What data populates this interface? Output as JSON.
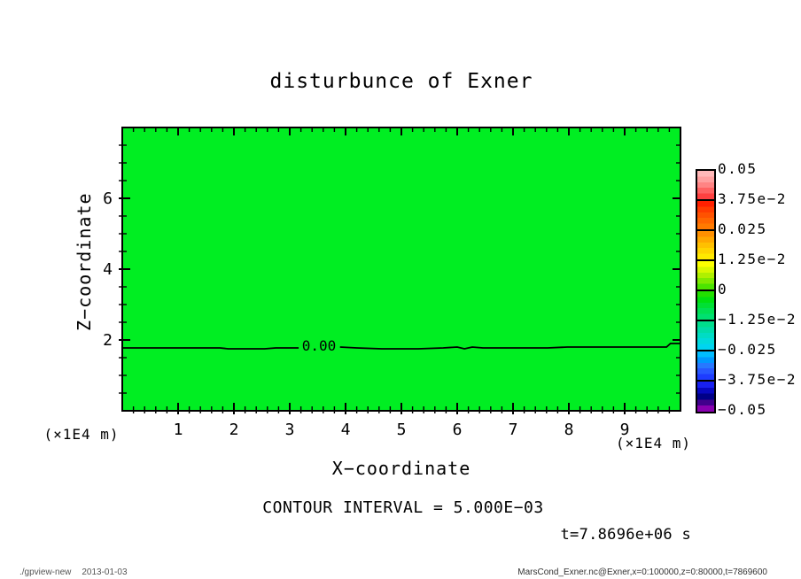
{
  "title": "disturbunce of Exner",
  "annotations": {
    "contour_interval": "CONTOUR INTERVAL = 5.000E−03",
    "time": "t=7.8696e+06 s"
  },
  "footer": {
    "left_program": "./gpview-new",
    "left_date": "2013-01-03",
    "right": "MarsCond_Exner.nc@Exner,x=0:100000,z=0:80000,t=7869600"
  },
  "chart_data": {
    "type": "filled_contour",
    "title": "disturbunce of Exner",
    "xlabel": "X−coordinate",
    "ylabel": "Z−coordinate",
    "x_unit_label": "(×1E4 m)",
    "y_unit_label": "(×1E4 m)",
    "xlim": [
      0,
      10
    ],
    "ylim": [
      0,
      8
    ],
    "x_major_ticks": [
      1,
      2,
      3,
      4,
      5,
      6,
      7,
      8,
      9
    ],
    "x_minor_step": 0.2,
    "y_major_ticks": [
      2,
      4,
      6
    ],
    "y_minor_step": 0.5,
    "grid": false,
    "field_fill_color": "#00ee22",
    "field_note": "entire domain lies in the 0 tone band",
    "contour_interval_value": 0.005,
    "contour": {
      "label": "0.00",
      "level": 0.0,
      "mean_z": 1.78,
      "label_x": 3.55,
      "segments": [
        [
          [
            0,
            1.775
          ],
          [
            1.75,
            1.775
          ],
          [
            1.9,
            1.75
          ],
          [
            2.55,
            1.75
          ],
          [
            2.75,
            1.775
          ],
          [
            3.16,
            1.775
          ]
        ],
        [
          [
            3.9,
            1.8
          ],
          [
            4.2,
            1.775
          ],
          [
            4.65,
            1.75
          ],
          [
            5.3,
            1.75
          ],
          [
            5.75,
            1.775
          ],
          [
            6.0,
            1.8
          ],
          [
            6.13,
            1.75
          ],
          [
            6.27,
            1.8
          ],
          [
            6.46,
            1.775
          ],
          [
            7.62,
            1.775
          ],
          [
            7.97,
            1.8
          ],
          [
            9.75,
            1.8
          ],
          [
            9.82,
            1.9
          ],
          [
            10,
            1.9
          ]
        ]
      ]
    },
    "colorbar": {
      "labels": [
        "0.05",
        "3.75e−2",
        "0.025",
        "1.25e−2",
        "0",
        "−1.25e−2",
        "−0.025",
        "−3.75e−2",
        "−0.05"
      ],
      "values": [
        0.05,
        0.0375,
        0.025,
        0.0125,
        0,
        -0.0125,
        -0.025,
        -0.0375,
        -0.05
      ],
      "cells": [
        {
          "steps": [
            "#ffb8b8",
            "#ffa0a0",
            "#ff8484",
            "#ff6262",
            "#ff4040"
          ]
        },
        {
          "steps": [
            "#ff2000",
            "#ff3c00",
            "#ff5200",
            "#ff6600",
            "#ff7a00"
          ]
        },
        {
          "steps": [
            "#ff9000",
            "#ffa800",
            "#ffc000",
            "#ffd400",
            "#ffe800"
          ]
        },
        {
          "steps": [
            "#fcff00",
            "#d8f800",
            "#aff000",
            "#80ea00",
            "#4ce400"
          ]
        },
        {
          "steps": [
            "#22e000",
            "#00e010",
            "#00e034",
            "#00e054",
            "#00e070"
          ]
        },
        {
          "steps": [
            "#00de8c",
            "#00dcaa",
            "#00dcc4",
            "#00dadc",
            "#00d4f0"
          ]
        },
        {
          "steps": [
            "#00bcff",
            "#0098ff",
            "#2878ff",
            "#2858ff",
            "#1e3cff"
          ]
        },
        {
          "steps": [
            "#1820f0",
            "#0808c0",
            "#000088",
            "#40008c",
            "#8800b0"
          ]
        }
      ]
    }
  }
}
